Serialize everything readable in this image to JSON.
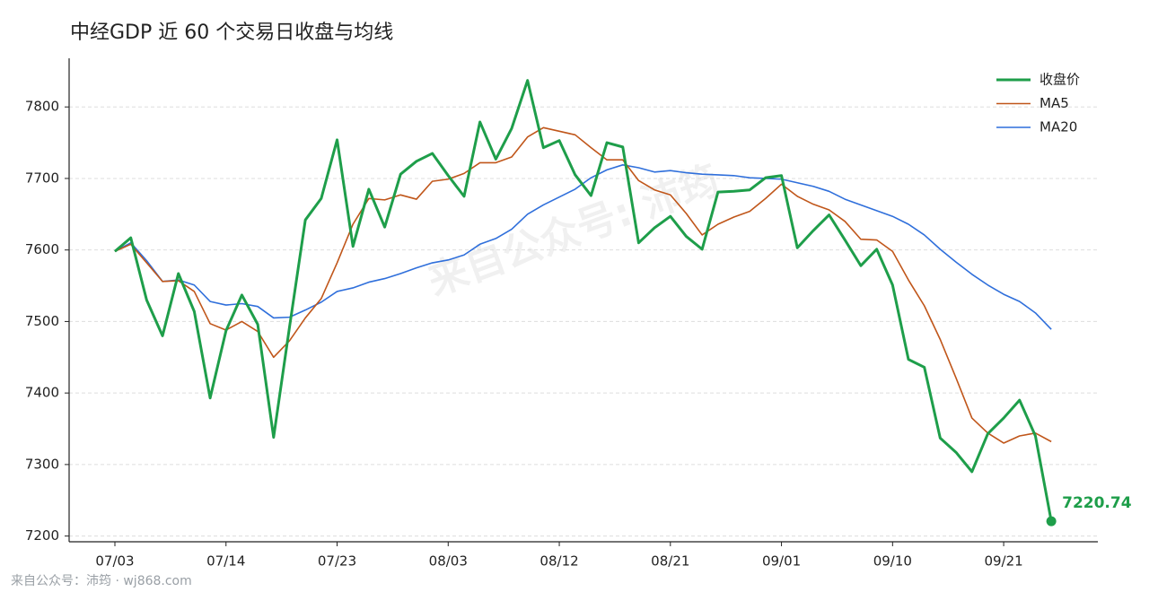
{
  "chart_data": {
    "type": "line",
    "title": "中经GDP 近 60 个交易日收盘与均线",
    "categories": [
      "07/03",
      null,
      null,
      null,
      null,
      null,
      null,
      "07/14",
      null,
      null,
      null,
      null,
      null,
      null,
      "07/23",
      null,
      null,
      null,
      null,
      null,
      null,
      "08/03",
      null,
      null,
      null,
      null,
      null,
      null,
      "08/12",
      null,
      null,
      null,
      null,
      null,
      null,
      "08/21",
      null,
      null,
      null,
      null,
      null,
      null,
      "09/01",
      null,
      null,
      null,
      null,
      null,
      null,
      "09/10",
      null,
      null,
      null,
      null,
      null,
      null,
      "09/21",
      null,
      null,
      null
    ],
    "series": [
      {
        "name": "收盘价",
        "color": "#1e9e4a",
        "values": [
          7598,
          7617,
          7530,
          7480,
          7567,
          7514,
          7393,
          7487,
          7537,
          7496,
          7338,
          7492,
          7642,
          7672,
          7754,
          7605,
          7685,
          7632,
          7706,
          7724,
          7735,
          7704,
          7675,
          7779,
          7727,
          7770,
          7837,
          7743,
          7753,
          7705,
          7676,
          7750,
          7744,
          7610,
          7631,
          7647,
          7619,
          7601,
          7681,
          7682,
          7684,
          7701,
          7704,
          7603,
          7627,
          7649,
          7614,
          7578,
          7601,
          7551,
          7447,
          7436,
          7337,
          7317,
          7290,
          7343,
          7365,
          7390,
          7340,
          7220.74
        ]
      },
      {
        "name": "MA5",
        "color": "#c0561a",
        "values": [
          7598,
          7608,
          7582,
          7556,
          7557,
          7542,
          7497,
          7488,
          7500,
          7486,
          7450,
          7473,
          7505,
          7532,
          7582,
          7636,
          7672,
          7670,
          7677,
          7671,
          7696,
          7699,
          7707,
          7722,
          7722,
          7730,
          7758,
          7771,
          7766,
          7761,
          7743,
          7726,
          7726,
          7697,
          7684,
          7677,
          7651,
          7621,
          7636,
          7646,
          7654,
          7672,
          7692,
          7675,
          7664,
          7656,
          7640,
          7615,
          7614,
          7598,
          7558,
          7522,
          7475,
          7421,
          7365,
          7344,
          7330,
          7340,
          7344,
          7332
        ]
      },
      {
        "name": "MA20",
        "color": "#2f6fdb",
        "values": [
          7598,
          7610,
          7585,
          7556,
          7558,
          7551,
          7528,
          7523,
          7525,
          7521,
          7505,
          7506,
          7516,
          7527,
          7542,
          7547,
          7555,
          7560,
          7567,
          7575,
          7582,
          7586,
          7593,
          7608,
          7616,
          7629,
          7650,
          7663,
          7674,
          7685,
          7701,
          7712,
          7719,
          7715,
          7709,
          7711,
          7708,
          7706,
          7705,
          7704,
          7701,
          7700,
          7699,
          7694,
          7689,
          7682,
          7671,
          7663,
          7655,
          7647,
          7636,
          7621,
          7601,
          7583,
          7566,
          7551,
          7538,
          7528,
          7512,
          7489
        ]
      }
    ],
    "ylim": [
      7192,
      7868
    ],
    "yticks": [
      7200,
      7300,
      7400,
      7500,
      7600,
      7700,
      7800
    ],
    "grid": true,
    "legend": "upper-right",
    "watermark": "来自公众号: 沛筠",
    "footer": "来自公众号：沛筠 · wj868.com"
  }
}
